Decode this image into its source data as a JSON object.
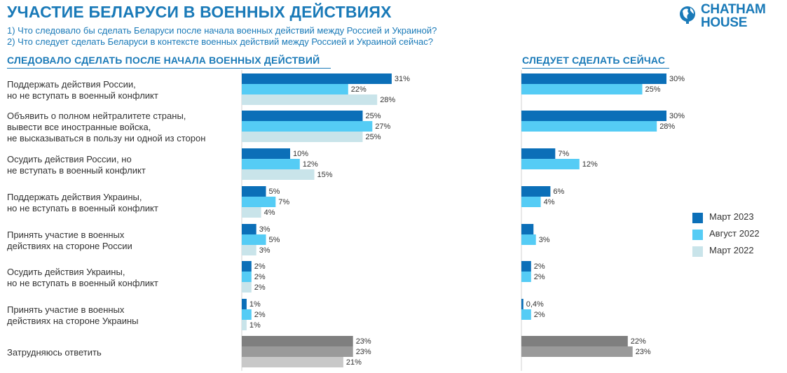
{
  "title": "УЧАСТИЕ БЕЛАРУСИ В ВОЕННЫХ ДЕЙСТВИЯХ",
  "questions": [
    "1) Что следовало бы сделать Беларуси после начала военных действий между Россией и Украиной?",
    "2) Что следует сделать Беларуси в контексте военных действий между Россией и Украиной сейчас?"
  ],
  "logo": {
    "line1": "CHATHAM",
    "line2": "HOUSE",
    "icon": "globe-icon"
  },
  "colors": {
    "mar2023": "#0b6fb8",
    "aug2022": "#55ccf5",
    "mar2022": "#c9e4ea",
    "undecided_dark": "#7f7f7f",
    "undecided_mid": "#9a9a9a",
    "undecided_light": "#c8c8c8"
  },
  "chart_data": [
    {
      "type": "bar",
      "orientation": "horizontal",
      "title": "СЛЕДОВАЛО СДЕЛАТЬ ПОСЛЕ НАЧАЛА ВОЕННЫХ ДЕЙСТВИЙ",
      "categories": [
        "Поддержать действия России, но не вступать в военный конфликт",
        "Объявить о полном нейтралитете страны, вывести все иностранные войска, не высказываться в пользу ни одной из сторон",
        "Осудить действия России, но не вступать в военный конфликт",
        "Поддержать действия Украины, но не вступать в военный конфликт",
        "Принять участие в военных действиях на стороне России",
        "Осудить действия Украины, но не вступать в военный конфликт",
        "Принять участие в военных действиях на стороне Украины",
        "Затрудняюсь ответить"
      ],
      "series": [
        {
          "name": "Март 2023",
          "values": [
            31,
            25,
            10,
            5,
            3,
            2,
            1,
            23
          ],
          "labels": [
            "31%",
            "25%",
            "10%",
            "5%",
            "3%",
            "2%",
            "1%",
            "23%"
          ]
        },
        {
          "name": "Август 2022",
          "values": [
            22,
            27,
            12,
            7,
            5,
            2,
            2,
            23
          ],
          "labels": [
            "22%",
            "27%",
            "12%",
            "7%",
            "5%",
            "2%",
            "2%",
            "23%"
          ]
        },
        {
          "name": "Март 2022",
          "values": [
            28,
            25,
            15,
            4,
            3,
            2,
            1,
            21
          ],
          "labels": [
            "28%",
            "25%",
            "15%",
            "4%",
            "3%",
            "2%",
            "1%",
            "21%"
          ]
        }
      ]
    },
    {
      "type": "bar",
      "orientation": "horizontal",
      "title": "СЛЕДУЕТ СДЕЛАТЬ СЕЙЧАС",
      "categories": [
        "Поддержать действия России, но не вступать в военный конфликт",
        "Объявить о полном нейтралитете страны, вывести все иностранные войска, не высказываться в пользу ни одной из сторон",
        "Осудить действия России, но не вступать в военный конфликт",
        "Поддержать действия Украины, но не вступать в военный конфликт",
        "Принять участие в военных действиях на стороне России",
        "Осудить действия Украины, но не вступать в военный конфликт",
        "Принять участие в военных действиях на стороне Украины",
        "Затрудняюсь ответить"
      ],
      "series": [
        {
          "name": "Март 2023",
          "values": [
            30,
            30,
            7,
            6,
            2.5,
            2,
            0.4,
            22
          ],
          "labels": [
            "30%",
            "30%",
            "7%",
            "6%",
            "",
            "2%",
            "0,4%",
            "22%"
          ]
        },
        {
          "name": "Август 2022",
          "values": [
            25,
            28,
            12,
            4,
            3,
            2,
            2,
            23
          ],
          "labels": [
            "25%",
            "28%",
            "12%",
            "4%",
            "3%",
            "2%",
            "2%",
            "23%"
          ]
        }
      ]
    }
  ],
  "category_lines": [
    [
      "Поддержать действия России,",
      "но не вступать в военный конфликт"
    ],
    [
      "Объявить о полном нейтралитете страны,",
      "вывести все иностранные войска,",
      "не высказываться в пользу ни одной из сторон"
    ],
    [
      "Осудить действия России, но",
      "не вступать в военный конфликт"
    ],
    [
      "Поддержать действия Украины,",
      "но не вступать в военный конфликт"
    ],
    [
      "Принять участие в военных",
      "действиях на стороне России"
    ],
    [
      "Осудить действия Украины,",
      "но не вступать в военный конфликт"
    ],
    [
      "Принять участие в военных",
      "действиях на стороне Украины"
    ],
    [
      "Затрудняюсь ответить"
    ]
  ],
  "legend": [
    "Март 2023",
    "Август 2022",
    "Март 2022"
  ]
}
